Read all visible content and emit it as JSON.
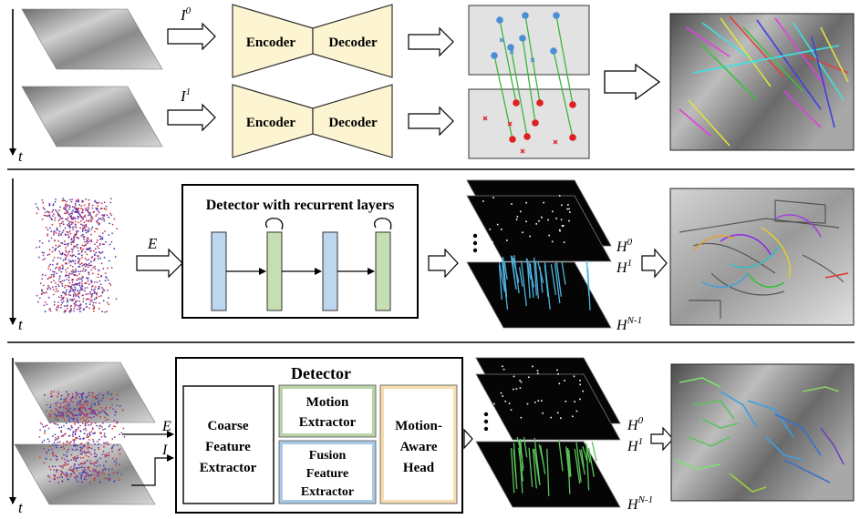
{
  "row1": {
    "time_axis": "t",
    "input_top": "I",
    "input_top_sup": "0",
    "input_bottom": "I",
    "input_bottom_sup": "1",
    "encoder_label": "Encoder",
    "decoder_label": "Decoder"
  },
  "row2": {
    "time_axis": "t",
    "event_input": "E",
    "detector_title": "Detector with recurrent layers",
    "heatmap_labels": [
      {
        "base": "H",
        "sup": "0"
      },
      {
        "base": "H",
        "sup": "1"
      },
      {
        "base": "H",
        "sup": "N-1"
      }
    ]
  },
  "row3": {
    "time_axis": "t",
    "event_input": "E",
    "image_input": "I",
    "detector_title": "Detector",
    "coarse_extractor": [
      "Coarse",
      "Feature",
      "Extractor"
    ],
    "motion_extractor": [
      "Motion",
      "Extractor"
    ],
    "fusion_extractor": [
      "Fusion",
      "Feature",
      "Extractor"
    ],
    "motion_head": [
      "Motion-",
      "Aware",
      "Head"
    ],
    "heatmap_labels": [
      {
        "base": "H",
        "sup": "0"
      },
      {
        "base": "H",
        "sup": "1"
      },
      {
        "base": "H",
        "sup": "N-1"
      }
    ]
  },
  "colors": {
    "encoder_fill": "#fdf5d2",
    "layer_blue": "#bcd7ee",
    "layer_green": "#c6dfb2",
    "match_line": "#3db53d",
    "keypoint_blue": "#4a8fd6",
    "keypoint_red": "#e02020",
    "motion_border": "#b9d3a8",
    "fusion_border": "#a9c8e6",
    "head_border": "#f5ddb0"
  }
}
